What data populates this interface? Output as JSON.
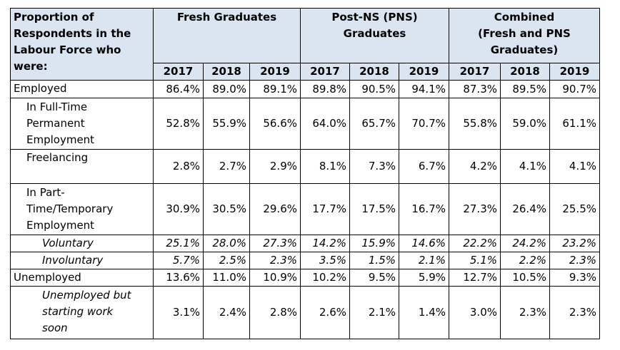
{
  "header": {
    "corner": "Proportion of\nRespondents in the\nLabour Force who\nwere:",
    "groups": [
      "Fresh Graduates",
      "Post-NS (PNS)\nGraduates",
      "Combined\n(Fresh and PNS\nGraduates)"
    ],
    "years": [
      "2017",
      "2018",
      "2019",
      "2017",
      "2018",
      "2019",
      "2017",
      "2018",
      "2019"
    ]
  },
  "rows": [
    {
      "label": "Employed",
      "values": [
        "86.4%",
        "89.0%",
        "89.1%",
        "89.8%",
        "90.5%",
        "94.1%",
        "87.3%",
        "89.5%",
        "90.7%"
      ]
    },
    {
      "label": "In Full-Time\nPermanent\nEmployment",
      "values": [
        "52.8%",
        "55.9%",
        "56.6%",
        "64.0%",
        "65.7%",
        "70.7%",
        "55.8%",
        "59.0%",
        "61.1%"
      ]
    },
    {
      "label": "Freelancing",
      "values": [
        "2.8%",
        "2.7%",
        "2.9%",
        "8.1%",
        "7.3%",
        "6.7%",
        "4.2%",
        "4.1%",
        "4.1%"
      ]
    },
    {
      "label": "In Part-\nTime/Temporary\nEmployment",
      "values": [
        "30.9%",
        "30.5%",
        "29.6%",
        "17.7%",
        "17.5%",
        "16.7%",
        "27.3%",
        "26.4%",
        "25.5%"
      ]
    },
    {
      "label": "Voluntary",
      "values": [
        "25.1%",
        "28.0%",
        "27.3%",
        "14.2%",
        "15.9%",
        "14.6%",
        "22.2%",
        "24.2%",
        "23.2%"
      ]
    },
    {
      "label": "Involuntary",
      "values": [
        "5.7%",
        "2.5%",
        "2.3%",
        "3.5%",
        "1.5%",
        "2.1%",
        "5.1%",
        "2.2%",
        "2.3%"
      ]
    },
    {
      "label": "Unemployed",
      "values": [
        "13.6%",
        "11.0%",
        "10.9%",
        "10.2%",
        "9.5%",
        "5.9%",
        "12.7%",
        "10.5%",
        "9.3%"
      ]
    },
    {
      "label": "Unemployed but\nstarting work\nsoon",
      "values": [
        "3.1%",
        "2.4%",
        "2.8%",
        "2.6%",
        "2.1%",
        "1.4%",
        "3.0%",
        "2.3%",
        "2.3%"
      ]
    }
  ]
}
